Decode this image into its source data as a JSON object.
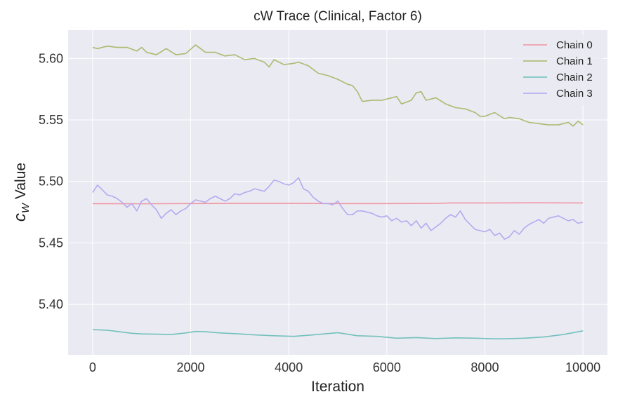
{
  "chart_data": {
    "type": "line",
    "title": "cW Trace (Clinical, Factor 6)",
    "xlabel": "Iteration",
    "ylabel_main": "c",
    "ylabel_sub": "W",
    "ylabel_rest": " Value",
    "xlim": [
      -500,
      10500
    ],
    "ylim": [
      5.359,
      5.623
    ],
    "xticks": [
      0,
      2000,
      4000,
      6000,
      8000,
      10000
    ],
    "xtick_labels": [
      "0",
      "2000",
      "4000",
      "6000",
      "8000",
      "10000"
    ],
    "yticks": [
      5.4,
      5.45,
      5.5,
      5.55,
      5.6
    ],
    "ytick_labels": [
      "5.40",
      "5.45",
      "5.50",
      "5.55",
      "5.60"
    ],
    "grid": true,
    "legend_position": "top-right",
    "series": [
      {
        "name": "Chain 0",
        "color": "#f0949f",
        "x": [
          0,
          1000,
          2000,
          3000,
          4000,
          5000,
          6000,
          7000,
          7300,
          8000,
          9000,
          10000
        ],
        "y": [
          5.4819,
          5.4818,
          5.482,
          5.4821,
          5.4821,
          5.482,
          5.482,
          5.4821,
          5.4825,
          5.4825,
          5.4826,
          5.4825
        ]
      },
      {
        "name": "Chain 1",
        "color": "#a8b768",
        "x": [
          0,
          100,
          300,
          500,
          700,
          900,
          1000,
          1100,
          1300,
          1500,
          1700,
          1900,
          2100,
          2300,
          2500,
          2700,
          2900,
          3100,
          3300,
          3500,
          3600,
          3700,
          3900,
          4100,
          4200,
          4400,
          4600,
          4800,
          5000,
          5200,
          5300,
          5400,
          5500,
          5700,
          5900,
          6100,
          6200,
          6300,
          6500,
          6600,
          6700,
          6800,
          7000,
          7200,
          7400,
          7600,
          7800,
          7900,
          8000,
          8200,
          8400,
          8500,
          8700,
          8900,
          9100,
          9300,
          9500,
          9700,
          9800,
          9900,
          10000
        ],
        "y": [
          5.609,
          5.608,
          5.61,
          5.609,
          5.609,
          5.606,
          5.609,
          5.605,
          5.603,
          5.608,
          5.603,
          5.604,
          5.611,
          5.605,
          5.605,
          5.602,
          5.603,
          5.599,
          5.6,
          5.597,
          5.593,
          5.599,
          5.595,
          5.596,
          5.597,
          5.594,
          5.588,
          5.586,
          5.583,
          5.579,
          5.578,
          5.573,
          5.565,
          5.566,
          5.566,
          5.568,
          5.569,
          5.563,
          5.566,
          5.572,
          5.573,
          5.566,
          5.568,
          5.563,
          5.56,
          5.559,
          5.556,
          5.553,
          5.553,
          5.556,
          5.551,
          5.552,
          5.551,
          5.548,
          5.547,
          5.546,
          5.546,
          5.548,
          5.545,
          5.549,
          5.546
        ]
      },
      {
        "name": "Chain 2",
        "color": "#6bbfb8",
        "x": [
          0,
          300,
          500,
          800,
          1000,
          1300,
          1600,
          1900,
          2100,
          2300,
          2600,
          2900,
          3300,
          3700,
          4100,
          4500,
          5000,
          5400,
          5800,
          6200,
          6600,
          7000,
          7400,
          7800,
          8200,
          8400,
          8800,
          9200,
          9600,
          10000
        ],
        "y": [
          5.3795,
          5.379,
          5.378,
          5.3765,
          5.376,
          5.3758,
          5.3755,
          5.3768,
          5.378,
          5.3778,
          5.3768,
          5.3762,
          5.3752,
          5.3745,
          5.374,
          5.3752,
          5.377,
          5.3745,
          5.374,
          5.3725,
          5.373,
          5.3722,
          5.3728,
          5.3725,
          5.372,
          5.372,
          5.3725,
          5.3735,
          5.3755,
          5.3785
        ]
      },
      {
        "name": "Chain 3",
        "color": "#b2a6ef",
        "x": [
          0,
          100,
          200,
          300,
          400,
          500,
          600,
          700,
          800,
          900,
          1000,
          1100,
          1200,
          1300,
          1400,
          1500,
          1600,
          1700,
          1800,
          1900,
          2000,
          2100,
          2200,
          2300,
          2400,
          2500,
          2600,
          2700,
          2800,
          2900,
          3000,
          3100,
          3200,
          3300,
          3400,
          3500,
          3600,
          3700,
          3800,
          3900,
          4000,
          4100,
          4200,
          4300,
          4400,
          4500,
          4600,
          4700,
          4800,
          4900,
          5000,
          5100,
          5200,
          5300,
          5400,
          5500,
          5600,
          5700,
          5800,
          5900,
          6000,
          6100,
          6200,
          6300,
          6400,
          6500,
          6600,
          6700,
          6800,
          6900,
          7000,
          7100,
          7200,
          7300,
          7400,
          7500,
          7600,
          7700,
          7800,
          7900,
          8000,
          8100,
          8200,
          8300,
          8400,
          8500,
          8600,
          8700,
          8800,
          8900,
          9000,
          9100,
          9200,
          9300,
          9400,
          9500,
          9600,
          9700,
          9800,
          9900,
          10000
        ],
        "y": [
          5.491,
          5.497,
          5.493,
          5.489,
          5.488,
          5.486,
          5.483,
          5.479,
          5.482,
          5.476,
          5.484,
          5.486,
          5.481,
          5.477,
          5.47,
          5.474,
          5.477,
          5.473,
          5.476,
          5.478,
          5.482,
          5.485,
          5.484,
          5.483,
          5.486,
          5.488,
          5.486,
          5.484,
          5.486,
          5.49,
          5.489,
          5.491,
          5.492,
          5.494,
          5.493,
          5.492,
          5.496,
          5.501,
          5.5,
          5.498,
          5.497,
          5.499,
          5.503,
          5.494,
          5.492,
          5.487,
          5.484,
          5.482,
          5.482,
          5.481,
          5.484,
          5.478,
          5.473,
          5.473,
          5.476,
          5.476,
          5.475,
          5.474,
          5.472,
          5.471,
          5.472,
          5.468,
          5.47,
          5.467,
          5.468,
          5.464,
          5.468,
          5.462,
          5.466,
          5.46,
          5.463,
          5.466,
          5.47,
          5.473,
          5.471,
          5.476,
          5.469,
          5.465,
          5.461,
          5.46,
          5.459,
          5.461,
          5.456,
          5.458,
          5.453,
          5.455,
          5.46,
          5.457,
          5.462,
          5.465,
          5.467,
          5.469,
          5.466,
          5.47,
          5.471,
          5.472,
          5.47,
          5.468,
          5.469,
          5.466,
          5.467
        ]
      }
    ]
  }
}
